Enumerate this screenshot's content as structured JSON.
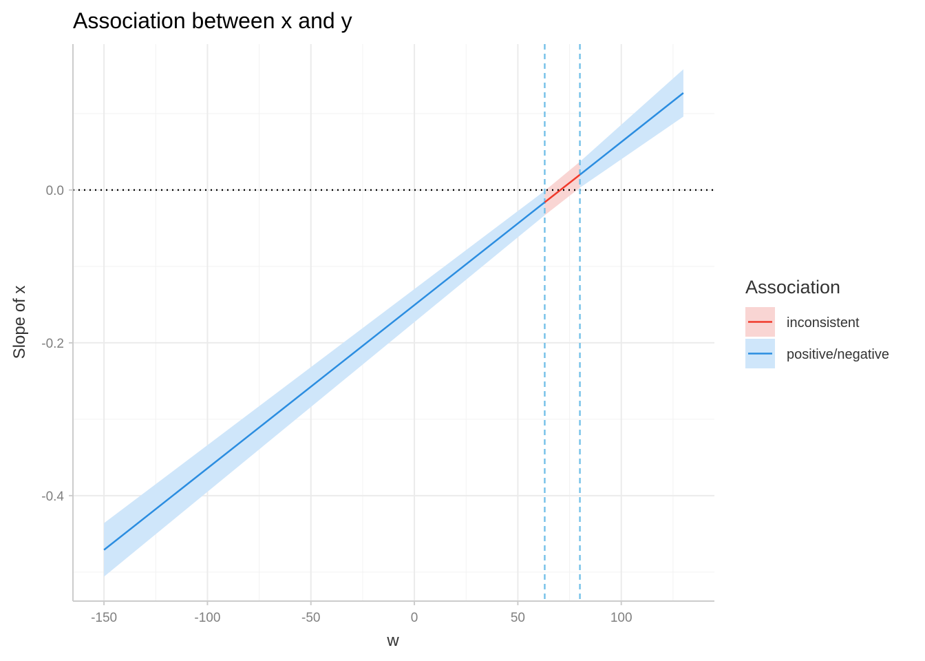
{
  "chart_data": {
    "type": "line",
    "title": "Association between x and y",
    "xlabel": "w",
    "ylabel": "Slope of x",
    "xlim": [
      -165,
      145
    ],
    "ylim": [
      -0.538,
      0.191
    ],
    "x_ticks": [
      -150,
      -100,
      -50,
      0,
      50,
      100
    ],
    "x_tick_labels": [
      "-150",
      "-100",
      "-50",
      "0",
      "50",
      "100"
    ],
    "y_ticks": [
      0.0,
      -0.2,
      -0.4
    ],
    "y_tick_labels": [
      "0.0",
      "-0.2",
      "-0.4"
    ],
    "grid": true,
    "reference_line": {
      "y": 0.0,
      "style": "dotted",
      "color": "#000000"
    },
    "vertical_lines": [
      {
        "x": 63.0,
        "style": "dashed",
        "color": "#74c0e8"
      },
      {
        "x": 80.0,
        "style": "dashed",
        "color": "#74c0e8"
      }
    ],
    "legend": {
      "title": "Association",
      "position": "right",
      "entries": [
        {
          "label": "inconsistent",
          "color": "#f0392b",
          "fill": "#f9d5d3"
        },
        {
          "label": "positive/negative",
          "color": "#2b8de0",
          "fill": "#cfe6fa"
        }
      ]
    },
    "series": [
      {
        "name": "positive/negative",
        "color": "#2b8de0",
        "fill": "#cfe6fa",
        "x": [
          -150,
          63
        ],
        "y": [
          -0.471,
          -0.016
        ],
        "lower": [
          -0.506,
          -0.033
        ],
        "upper": [
          -0.436,
          -0.001
        ]
      },
      {
        "name": "inconsistent",
        "color": "#f0392b",
        "fill": "#f9d5d3",
        "x": [
          63,
          80
        ],
        "y": [
          -0.016,
          0.02
        ],
        "lower": [
          -0.033,
          0.003
        ],
        "upper": [
          -0.001,
          0.037
        ]
      },
      {
        "name": "positive/negative",
        "color": "#2b8de0",
        "fill": "#cfe6fa",
        "x": [
          80,
          130
        ],
        "y": [
          0.02,
          0.127
        ],
        "lower": [
          0.003,
          0.096
        ],
        "upper": [
          0.037,
          0.158
        ]
      }
    ]
  }
}
